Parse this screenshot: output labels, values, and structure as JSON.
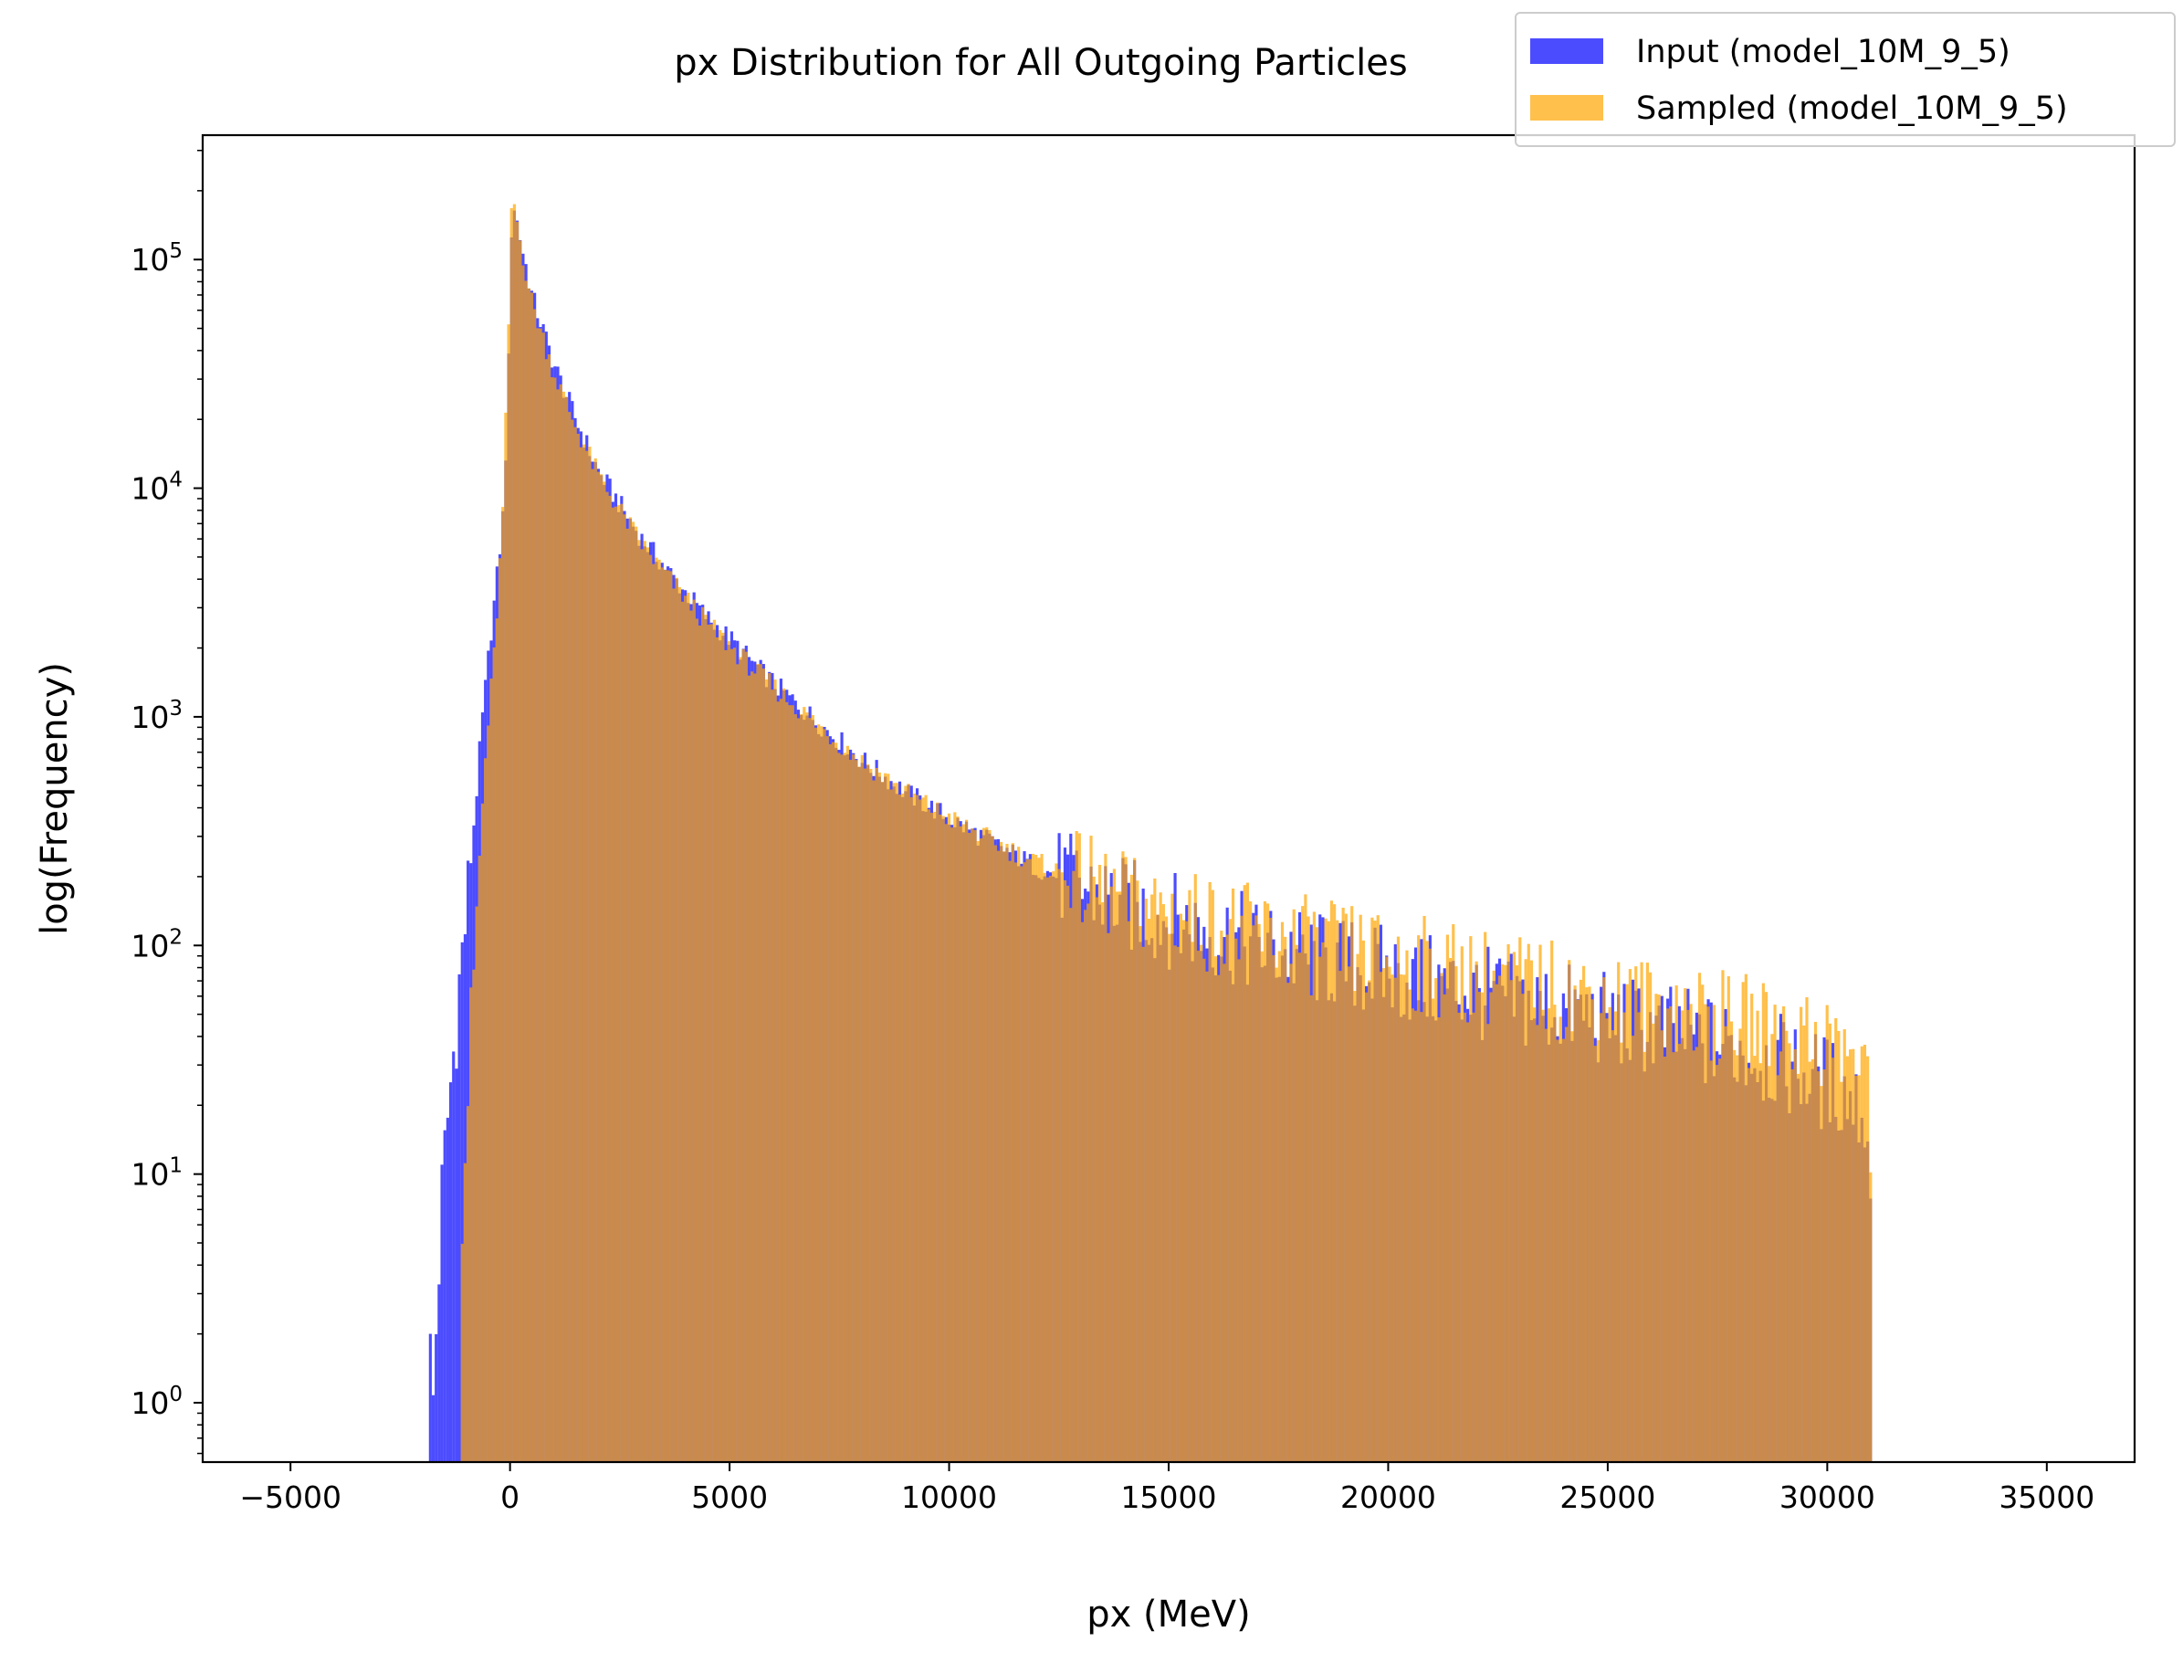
{
  "chart_data": {
    "type": "histogram",
    "title": "px Distribution for All Outgoing Particles",
    "xlabel": "px (MeV)",
    "ylabel": "log(Frequency)",
    "yscale": "log",
    "xlim": [
      -7000,
      37000
    ],
    "ylim": [
      0.55,
      350000
    ],
    "xticks": [
      -5000,
      0,
      5000,
      10000,
      15000,
      20000,
      25000,
      30000,
      35000
    ],
    "xtick_labels": [
      "−5000",
      "0",
      "5000",
      "10000",
      "15000",
      "20000",
      "25000",
      "30000",
      "35000"
    ],
    "yticks": [
      {
        "value": 1,
        "base": "10",
        "exp": "0"
      },
      {
        "value": 10,
        "base": "10",
        "exp": "1"
      },
      {
        "value": 100,
        "base": "10",
        "exp": "2"
      },
      {
        "value": 1000,
        "base": "10",
        "exp": "3"
      },
      {
        "value": 10000,
        "base": "10",
        "exp": "4"
      },
      {
        "value": 100000,
        "base": "10",
        "exp": "5"
      }
    ],
    "grid": false,
    "legend_position": "top-right",
    "series": [
      {
        "name": "Input (model_10M_9_5)",
        "color": "#0000ff",
        "alpha": 0.7,
        "points": [
          [
            -1850,
            2
          ],
          [
            -1750,
            1
          ],
          [
            -1650,
            3
          ],
          [
            -1550,
            8
          ],
          [
            -1450,
            15
          ],
          [
            -1350,
            25
          ],
          [
            -1250,
            40
          ],
          [
            -1150,
            70
          ],
          [
            -1050,
            110
          ],
          [
            -950,
            170
          ],
          [
            -850,
            300
          ],
          [
            -750,
            500
          ],
          [
            -650,
            900
          ],
          [
            -550,
            1400
          ],
          [
            -450,
            2200
          ],
          [
            -350,
            3300
          ],
          [
            -250,
            5000
          ],
          [
            -150,
            8000
          ],
          [
            -50,
            25000
          ],
          [
            50,
            190000
          ],
          [
            250,
            120000
          ],
          [
            500,
            70000
          ],
          [
            1000,
            35000
          ],
          [
            1500,
            20000
          ],
          [
            2000,
            12000
          ],
          [
            2500,
            8500
          ],
          [
            3000,
            6000
          ],
          [
            3500,
            4600
          ],
          [
            4000,
            3500
          ],
          [
            4500,
            2700
          ],
          [
            5000,
            2200
          ],
          [
            5500,
            1750
          ],
          [
            6000,
            1400
          ],
          [
            7000,
            950
          ],
          [
            8000,
            650
          ],
          [
            9000,
            470
          ],
          [
            10000,
            360
          ],
          [
            11000,
            280
          ],
          [
            12000,
            220
          ],
          [
            13000,
            180
          ],
          [
            14000,
            150
          ],
          [
            15000,
            130
          ],
          [
            16000,
            115
          ],
          [
            17000,
            100
          ],
          [
            18000,
            90
          ],
          [
            19000,
            82
          ],
          [
            20000,
            75
          ],
          [
            21000,
            68
          ],
          [
            22000,
            62
          ],
          [
            23000,
            56
          ],
          [
            24000,
            52
          ],
          [
            25000,
            47
          ],
          [
            26000,
            43
          ],
          [
            27000,
            39
          ],
          [
            28000,
            35
          ],
          [
            29000,
            30
          ],
          [
            30000,
            25
          ],
          [
            30500,
            22
          ],
          [
            30900,
            18
          ],
          [
            31050,
            3
          ]
        ]
      },
      {
        "name": "Sampled (model_10M_9_5)",
        "color": "#ffa500",
        "alpha": 0.7,
        "points": [
          [
            -1150,
            5
          ],
          [
            -1050,
            10
          ],
          [
            -950,
            25
          ],
          [
            -850,
            60
          ],
          [
            -750,
            150
          ],
          [
            -650,
            350
          ],
          [
            -550,
            700
          ],
          [
            -450,
            1200
          ],
          [
            -350,
            2000
          ],
          [
            -250,
            4000
          ],
          [
            -150,
            9000
          ],
          [
            -50,
            40000
          ],
          [
            50,
            200000
          ],
          [
            250,
            115000
          ],
          [
            500,
            65000
          ],
          [
            1000,
            32000
          ],
          [
            1500,
            18500
          ],
          [
            2000,
            11500
          ],
          [
            2500,
            8000
          ],
          [
            3000,
            5700
          ],
          [
            3500,
            4300
          ],
          [
            4000,
            3300
          ],
          [
            4500,
            2550
          ],
          [
            5000,
            2050
          ],
          [
            5500,
            1650
          ],
          [
            6000,
            1350
          ],
          [
            7000,
            920
          ],
          [
            8000,
            640
          ],
          [
            9000,
            470
          ],
          [
            10000,
            360
          ],
          [
            11000,
            285
          ],
          [
            12000,
            230
          ],
          [
            13000,
            190
          ],
          [
            14000,
            160
          ],
          [
            15000,
            140
          ],
          [
            16000,
            125
          ],
          [
            17000,
            112
          ],
          [
            18000,
            102
          ],
          [
            19000,
            94
          ],
          [
            20000,
            87
          ],
          [
            21000,
            80
          ],
          [
            22000,
            74
          ],
          [
            23000,
            68
          ],
          [
            24000,
            63
          ],
          [
            25000,
            58
          ],
          [
            26000,
            54
          ],
          [
            27000,
            50
          ],
          [
            28000,
            46
          ],
          [
            29000,
            42
          ],
          [
            30000,
            38
          ],
          [
            30500,
            34
          ],
          [
            30900,
            28
          ],
          [
            31050,
            4
          ]
        ]
      }
    ]
  }
}
